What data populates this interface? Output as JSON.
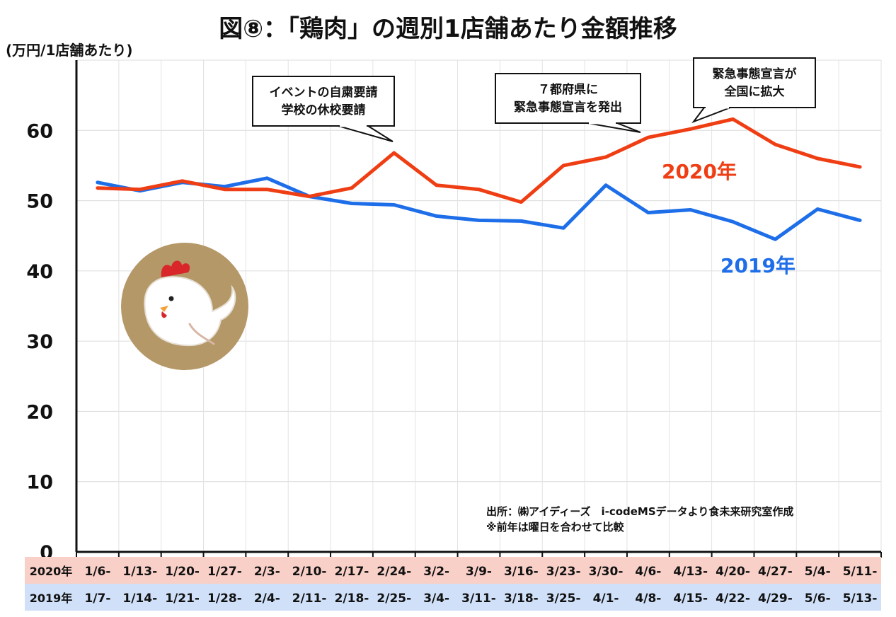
{
  "chart_data": {
    "type": "line",
    "title": "図⑧：「鶏肉」の週別1店舗あたり金額推移",
    "ylabel": "(万円/1店舗あたり)",
    "ylim": [
      0,
      70
    ],
    "yticks": [
      0,
      10,
      20,
      30,
      40,
      50,
      60
    ],
    "grid": true,
    "category_rows": [
      {
        "name": "2020年",
        "color": "#f8d0c8",
        "labels": [
          "1/6-",
          "1/13-",
          "1/20-",
          "1/27-",
          "2/3-",
          "2/10-",
          "2/17-",
          "2/24-",
          "3/2-",
          "3/9-",
          "3/16-",
          "3/23-",
          "3/30-",
          "4/6-",
          "4/13-",
          "4/20-",
          "4/27-",
          "5/4-",
          "5/11-"
        ]
      },
      {
        "name": "2019年",
        "color": "#cfe0f8",
        "labels": [
          "1/7-",
          "1/14-",
          "1/21-",
          "1/28-",
          "2/4-",
          "2/11-",
          "2/18-",
          "2/25-",
          "3/4-",
          "3/11-",
          "3/18-",
          "3/25-",
          "4/1-",
          "4/8-",
          "4/15-",
          "4/22-",
          "4/29-",
          "5/6-",
          "5/13-"
        ]
      }
    ],
    "series": [
      {
        "name": "2020年",
        "color": "#ef3e14",
        "values": [
          51.8,
          51.6,
          52.8,
          51.6,
          51.6,
          50.6,
          51.8,
          56.8,
          52.2,
          51.6,
          49.8,
          55.0,
          56.2,
          59.0,
          60.2,
          61.6,
          58.0,
          56.0,
          54.8
        ]
      },
      {
        "name": "2019年",
        "color": "#1d6ee8",
        "values": [
          52.6,
          51.4,
          52.6,
          52.0,
          53.2,
          50.6,
          49.6,
          49.4,
          47.8,
          47.2,
          47.1,
          46.1,
          52.2,
          48.3,
          48.7,
          47.0,
          44.5,
          48.8,
          47.2
        ]
      }
    ],
    "annotations": [
      {
        "lines": [
          "イベントの自粛要請",
          "学校の休校要請"
        ],
        "target_index": 7
      },
      {
        "lines": [
          "７都府県に",
          "緊急事態宣言を発出"
        ],
        "target_index": 13
      },
      {
        "lines": [
          "緊急事態宣言が",
          "全国に拡大"
        ],
        "target_index": 14
      }
    ],
    "source_note": [
      "出所：㈱アイディーズ　i-codeMSデータより食未来研究室作成",
      "※前年は曜日を合わせて比較"
    ],
    "illustration": "chicken-illustration"
  }
}
